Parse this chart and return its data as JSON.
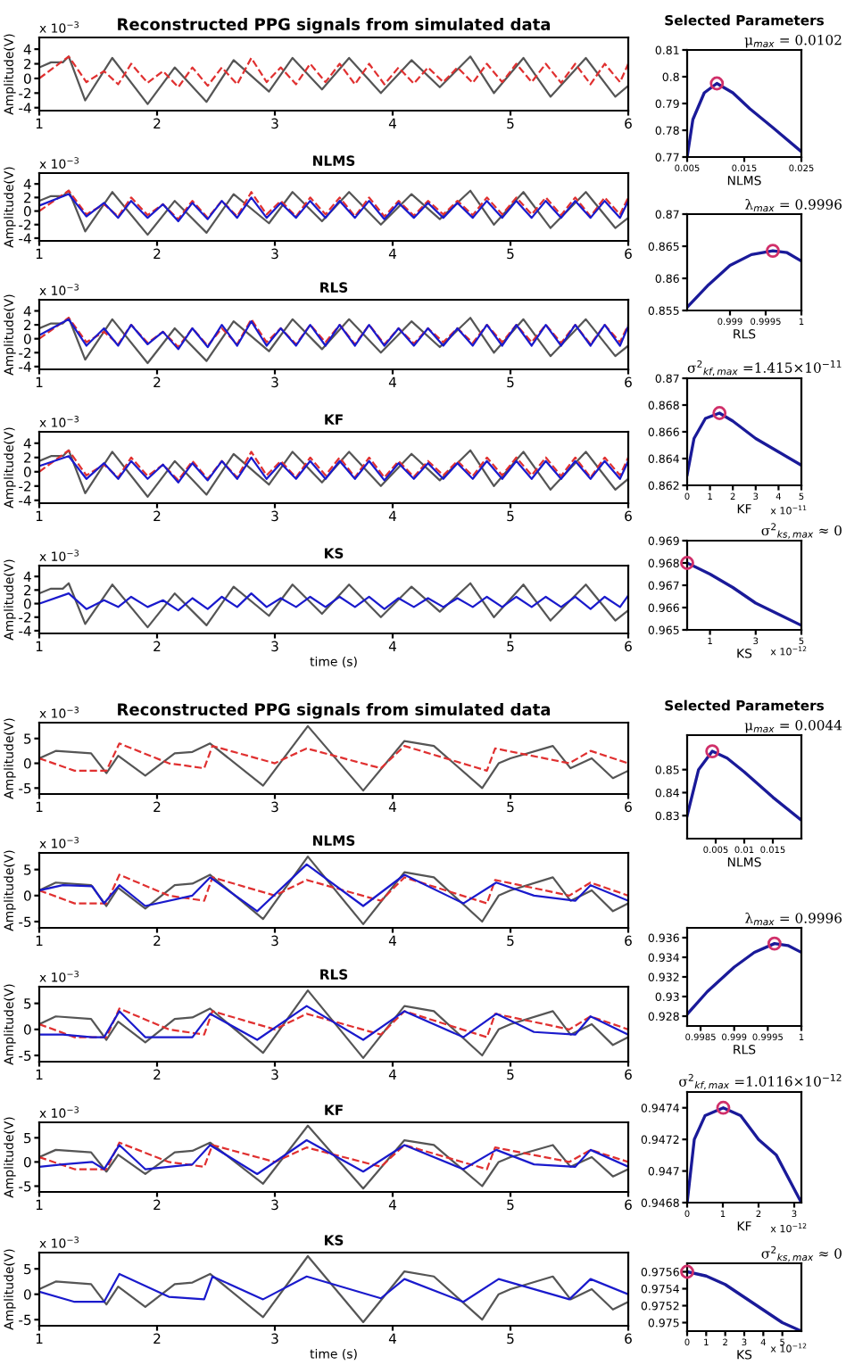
{
  "chart_data": [
    {
      "type": "line",
      "title": "Reconstructed PPG signals from simulated data",
      "ylabel": "Amplitude(V)",
      "xlim": [
        1,
        6
      ],
      "ylim": [
        -4.4,
        5.6
      ],
      "xticks": [
        1,
        2,
        3,
        4,
        5,
        6
      ],
      "yticks": [
        -4,
        -2,
        0,
        2,
        4
      ],
      "annotations": [
        "x 10$^{−3}$"
      ],
      "series": [
        {
          "color": "#555555",
          "x": [
            1.0,
            1.1,
            1.2,
            1.25,
            1.39,
            1.62,
            1.92,
            2.15,
            2.42,
            2.65,
            2.95,
            3.15,
            3.4,
            3.63,
            3.9,
            4.16,
            4.4,
            4.66,
            4.86,
            5.11,
            5.34,
            5.64,
            5.89,
            6.0
          ],
          "values": [
            1.5,
            2.2,
            2.2,
            3,
            -3,
            2.8,
            -3.5,
            1.5,
            -3.2,
            2.5,
            -1.8,
            2.8,
            -1.5,
            2.8,
            -2,
            2.5,
            -1.2,
            3,
            -2,
            2.8,
            -2.5,
            2.8,
            -2.5,
            -1
          ]
        },
        {
          "color": "#e03030",
          "line_style": "dashed",
          "x": [
            1.0,
            1.25,
            1.4,
            1.55,
            1.67,
            1.78,
            1.92,
            2.05,
            2.18,
            2.3,
            2.43,
            2.55,
            2.68,
            2.8,
            2.93,
            3.05,
            3.18,
            3.3,
            3.43,
            3.55,
            3.68,
            3.8,
            3.93,
            4.05,
            4.18,
            4.3,
            4.43,
            4.55,
            4.68,
            4.8,
            4.93,
            5.05,
            5.18,
            5.3,
            5.43,
            5.55,
            5.68,
            5.8,
            5.93,
            6.0
          ],
          "values": [
            0,
            3,
            -0.5,
            1,
            -0.8,
            2,
            -0.6,
            1,
            -1.2,
            1.5,
            -1,
            1.5,
            -0.8,
            2.8,
            -0.5,
            1.5,
            -0.8,
            2,
            -0.5,
            2,
            -0.8,
            2,
            -0.8,
            1.5,
            -0.7,
            1.5,
            -0.5,
            1.5,
            -0.6,
            2,
            -0.5,
            2,
            -0.5,
            2,
            -0.6,
            2,
            -0.8,
            2,
            -0.5,
            2
          ]
        }
      ]
    },
    {
      "type": "line",
      "title": "NLMS",
      "ylabel": "Amplitude(V)",
      "xlim": [
        1,
        6
      ],
      "ylim": [
        -4.4,
        5.6
      ],
      "xticks": [
        1,
        2,
        3,
        4,
        5,
        6
      ],
      "yticks": [
        -4,
        -2,
        0,
        2,
        4
      ],
      "annotations": [
        "x 10$^{−3}$"
      ],
      "series": [
        {
          "color": "#555555",
          "x": [
            1.0,
            1.1,
            1.2,
            1.25,
            1.39,
            1.62,
            1.92,
            2.15,
            2.42,
            2.65,
            2.95,
            3.15,
            3.4,
            3.63,
            3.9,
            4.16,
            4.4,
            4.66,
            4.86,
            5.11,
            5.34,
            5.64,
            5.89,
            6.0
          ],
          "values": [
            1.5,
            2.2,
            2.2,
            3,
            -3,
            2.8,
            -3.5,
            1.5,
            -3.2,
            2.5,
            -1.8,
            2.8,
            -1.5,
            2.8,
            -2,
            2.5,
            -1.2,
            3,
            -2,
            2.8,
            -2.5,
            2.8,
            -2.5,
            -1
          ]
        },
        {
          "color": "#e03030",
          "line_style": "dashed",
          "x": [
            1.0,
            1.25,
            1.4,
            1.55,
            1.67,
            1.78,
            1.92,
            2.05,
            2.18,
            2.3,
            2.43,
            2.55,
            2.68,
            2.8,
            2.93,
            3.05,
            3.18,
            3.3,
            3.43,
            3.55,
            3.68,
            3.8,
            3.93,
            4.05,
            4.18,
            4.3,
            4.43,
            4.55,
            4.68,
            4.8,
            4.93,
            5.05,
            5.18,
            5.3,
            5.43,
            5.55,
            5.68,
            5.8,
            5.93,
            6.0
          ],
          "values": [
            0,
            3,
            -0.5,
            1,
            -0.8,
            2,
            -0.6,
            1,
            -1.2,
            1.5,
            -1,
            1.5,
            -0.8,
            2.8,
            -0.5,
            1.5,
            -0.8,
            2,
            -0.5,
            2,
            -0.8,
            2,
            -0.8,
            1.5,
            -0.7,
            1.5,
            -0.5,
            1.5,
            -0.6,
            2,
            -0.5,
            2,
            -0.5,
            2,
            -0.6,
            2,
            -0.8,
            2,
            -0.5,
            2
          ]
        },
        {
          "color": "#1a1acc",
          "x": [
            1.0,
            1.25,
            1.4,
            1.55,
            1.67,
            1.78,
            1.92,
            2.05,
            2.18,
            2.3,
            2.43,
            2.55,
            2.68,
            2.8,
            2.93,
            3.05,
            3.18,
            3.3,
            3.43,
            3.55,
            3.68,
            3.8,
            3.93,
            4.05,
            4.18,
            4.3,
            4.43,
            4.55,
            4.68,
            4.8,
            4.93,
            5.05,
            5.18,
            5.3,
            5.43,
            5.55,
            5.68,
            5.8,
            5.93,
            6.0
          ],
          "values": [
            0.8,
            2.5,
            -0.8,
            1.2,
            -1,
            1.5,
            -1,
            1,
            -1.5,
            1.2,
            -1.2,
            1.5,
            -1,
            2,
            -1,
            1.2,
            -1,
            1.5,
            -1,
            1.5,
            -1,
            1.5,
            -1.2,
            1.2,
            -1,
            1.2,
            -1,
            1.2,
            -1,
            1.5,
            -1,
            1.5,
            -1,
            1.5,
            -1,
            1.5,
            -1,
            1.5,
            -1,
            1.5
          ]
        }
      ]
    },
    {
      "type": "line",
      "title": "RLS",
      "ylabel": "Amplitude(V)",
      "xlim": [
        1,
        6
      ],
      "ylim": [
        -4.4,
        5.6
      ],
      "xticks": [
        1,
        2,
        3,
        4,
        5,
        6
      ],
      "yticks": [
        -4,
        -2,
        0,
        2,
        4
      ],
      "annotations": [
        "x 10$^{−3}$"
      ],
      "series": [
        {
          "color": "#555555",
          "x": [
            1.0,
            1.1,
            1.2,
            1.25,
            1.39,
            1.62,
            1.92,
            2.15,
            2.42,
            2.65,
            2.95,
            3.15,
            3.4,
            3.63,
            3.9,
            4.16,
            4.4,
            4.66,
            4.86,
            5.11,
            5.34,
            5.64,
            5.89,
            6.0
          ],
          "values": [
            1.5,
            2.2,
            2.2,
            3,
            -3,
            2.8,
            -3.5,
            1.5,
            -3.2,
            2.5,
            -1.8,
            2.8,
            -1.5,
            2.8,
            -2,
            2.5,
            -1.2,
            3,
            -2,
            2.8,
            -2.5,
            2.8,
            -2.5,
            -1
          ]
        },
        {
          "color": "#e03030",
          "line_style": "dashed",
          "x": [
            1.0,
            1.25,
            1.4,
            1.55,
            1.67,
            1.78,
            1.92,
            2.05,
            2.18,
            2.3,
            2.43,
            2.55,
            2.68,
            2.8,
            2.93,
            3.05,
            3.18,
            3.3,
            3.43,
            3.55,
            3.68,
            3.8,
            3.93,
            4.05,
            4.18,
            4.3,
            4.43,
            4.55,
            4.68,
            4.8,
            4.93,
            5.05,
            5.18,
            5.3,
            5.43,
            5.55,
            5.68,
            5.8,
            5.93,
            6.0
          ],
          "values": [
            0,
            3,
            -0.5,
            1,
            -0.8,
            2,
            -0.6,
            1,
            -1.2,
            1.5,
            -1,
            1.5,
            -0.8,
            2.8,
            -0.5,
            1.5,
            -0.8,
            2,
            -0.5,
            2,
            -0.8,
            2,
            -0.8,
            1.5,
            -0.7,
            1.5,
            -0.5,
            1.5,
            -0.6,
            2,
            -0.5,
            2,
            -0.5,
            2,
            -0.6,
            2,
            -0.8,
            2,
            -0.5,
            2
          ]
        },
        {
          "color": "#1a1acc",
          "x": [
            1.0,
            1.25,
            1.4,
            1.55,
            1.67,
            1.78,
            1.92,
            2.05,
            2.18,
            2.3,
            2.43,
            2.55,
            2.68,
            2.8,
            2.93,
            3.05,
            3.18,
            3.3,
            3.43,
            3.55,
            3.68,
            3.8,
            3.93,
            4.05,
            4.18,
            4.3,
            4.43,
            4.55,
            4.68,
            4.8,
            4.93,
            5.05,
            5.18,
            5.3,
            5.43,
            5.55,
            5.68,
            5.8,
            5.93,
            6.0
          ],
          "values": [
            0.5,
            2.8,
            -1,
            1.5,
            -1,
            2,
            -0.8,
            1,
            -1.5,
            1.5,
            -1.2,
            2,
            -1,
            2.5,
            -1,
            1.5,
            -1,
            2,
            -1,
            2,
            -1,
            2,
            -1,
            1.5,
            -1,
            1.5,
            -1,
            1.5,
            -1,
            2,
            -1,
            2,
            -1,
            2,
            -1,
            2,
            -1,
            2,
            -1,
            1.8
          ]
        }
      ]
    },
    {
      "type": "line",
      "title": "KF",
      "ylabel": "Amplitude(V)",
      "xlim": [
        1,
        6
      ],
      "ylim": [
        -4.4,
        5.6
      ],
      "xticks": [
        1,
        2,
        3,
        4,
        5,
        6
      ],
      "yticks": [
        -4,
        -2,
        0,
        2,
        4
      ],
      "annotations": [
        "x 10$^{−3}$"
      ],
      "series": [
        {
          "color": "#555555",
          "x": [
            1.0,
            1.1,
            1.2,
            1.25,
            1.39,
            1.62,
            1.92,
            2.15,
            2.42,
            2.65,
            2.95,
            3.15,
            3.4,
            3.63,
            3.9,
            4.16,
            4.4,
            4.66,
            4.86,
            5.11,
            5.34,
            5.64,
            5.89,
            6.0
          ],
          "values": [
            1.5,
            2.2,
            2.2,
            3,
            -3,
            2.8,
            -3.5,
            1.5,
            -3.2,
            2.5,
            -1.8,
            2.8,
            -1.5,
            2.8,
            -2,
            2.5,
            -1.2,
            3,
            -2,
            2.8,
            -2.5,
            2.8,
            -2.5,
            -1
          ]
        },
        {
          "color": "#e03030",
          "line_style": "dashed",
          "x": [
            1.0,
            1.25,
            1.4,
            1.55,
            1.67,
            1.78,
            1.92,
            2.05,
            2.18,
            2.3,
            2.43,
            2.55,
            2.68,
            2.8,
            2.93,
            3.05,
            3.18,
            3.3,
            3.43,
            3.55,
            3.68,
            3.8,
            3.93,
            4.05,
            4.18,
            4.3,
            4.43,
            4.55,
            4.68,
            4.8,
            4.93,
            5.05,
            5.18,
            5.3,
            5.43,
            5.55,
            5.68,
            5.8,
            5.93,
            6.0
          ],
          "values": [
            0,
            3,
            -0.5,
            1,
            -0.8,
            2,
            -0.6,
            1,
            -1.2,
            1.5,
            -1,
            1.5,
            -0.8,
            2.8,
            -0.5,
            1.5,
            -0.8,
            2,
            -0.5,
            2,
            -0.8,
            2,
            -0.8,
            1.5,
            -0.7,
            1.5,
            -0.5,
            1.5,
            -0.6,
            2,
            -0.5,
            2,
            -0.5,
            2,
            -0.6,
            2,
            -0.8,
            2,
            -0.5,
            2
          ]
        },
        {
          "color": "#1a1acc",
          "x": [
            1.0,
            1.25,
            1.4,
            1.55,
            1.67,
            1.78,
            1.92,
            2.05,
            2.18,
            2.3,
            2.43,
            2.55,
            2.68,
            2.8,
            2.93,
            3.05,
            3.18,
            3.3,
            3.43,
            3.55,
            3.68,
            3.8,
            3.93,
            4.05,
            4.18,
            4.3,
            4.43,
            4.55,
            4.68,
            4.8,
            4.93,
            5.05,
            5.18,
            5.3,
            5.43,
            5.55,
            5.68,
            5.8,
            5.93,
            6.0
          ],
          "values": [
            0.8,
            2.2,
            -1,
            1.2,
            -1,
            1.5,
            -1,
            1,
            -1.5,
            1.2,
            -1.2,
            1.5,
            -1,
            2,
            -1,
            1.2,
            -1,
            1.5,
            -1,
            1.5,
            -1,
            1.5,
            -1.2,
            1.2,
            -1,
            1.2,
            -1,
            1.2,
            -1,
            1.5,
            -1,
            1.5,
            -1,
            1.5,
            -1,
            1.5,
            -1,
            1.5,
            -1,
            1.5
          ]
        }
      ]
    },
    {
      "type": "line",
      "title": "KS",
      "ylabel": "Amplitude(V)",
      "xlabel": "time (s)",
      "xlim": [
        1,
        6
      ],
      "ylim": [
        -4.4,
        5.6
      ],
      "xticks": [
        1,
        2,
        3,
        4,
        5,
        6
      ],
      "yticks": [
        -4,
        -2,
        0,
        2,
        4
      ],
      "annotations": [
        "x 10$^{−3}$"
      ],
      "series": [
        {
          "color": "#555555",
          "x": [
            1.0,
            1.1,
            1.2,
            1.25,
            1.39,
            1.62,
            1.92,
            2.15,
            2.42,
            2.65,
            2.95,
            3.15,
            3.4,
            3.63,
            3.9,
            4.16,
            4.4,
            4.66,
            4.86,
            5.11,
            5.34,
            5.64,
            5.89,
            6.0
          ],
          "values": [
            1.5,
            2.2,
            2.2,
            3,
            -3,
            2.8,
            -3.5,
            1.5,
            -3.2,
            2.5,
            -1.8,
            2.8,
            -1.5,
            2.8,
            -2,
            2.5,
            -1.2,
            3,
            -2,
            2.8,
            -2.5,
            2.8,
            -2.5,
            -1
          ]
        },
        {
          "color": "#1a1acc",
          "x": [
            1.0,
            1.25,
            1.4,
            1.55,
            1.67,
            1.78,
            1.92,
            2.05,
            2.18,
            2.3,
            2.43,
            2.55,
            2.68,
            2.8,
            2.93,
            3.05,
            3.18,
            3.3,
            3.43,
            3.55,
            3.68,
            3.8,
            3.93,
            4.05,
            4.18,
            4.3,
            4.43,
            4.55,
            4.68,
            4.8,
            4.93,
            5.05,
            5.18,
            5.3,
            5.43,
            5.55,
            5.68,
            5.8,
            5.93,
            6.0
          ],
          "values": [
            0,
            1.5,
            -0.8,
            0.5,
            -0.5,
            1,
            -0.5,
            0.5,
            -1,
            0.8,
            -0.8,
            1,
            -0.5,
            1.5,
            -0.5,
            0.8,
            -0.5,
            1,
            -0.5,
            1,
            -0.5,
            1,
            -0.8,
            0.8,
            -0.5,
            0.8,
            -0.5,
            0.8,
            -0.5,
            1,
            -0.5,
            1,
            -0.5,
            1,
            -0.5,
            1,
            -0.8,
            1,
            -0.5,
            1.2
          ]
        }
      ]
    },
    {
      "type": "line",
      "title": "Selected Parameters",
      "xlabel": "NLMS",
      "xlim": [
        0.005,
        0.025
      ],
      "ylim": [
        0.77,
        0.81
      ],
      "xticks": [
        0.005,
        0.015,
        0.025
      ],
      "yticks": [
        0.77,
        0.78,
        0.79,
        0.8,
        0.81
      ],
      "annotations": [
        "μ$_{max}$ = 0.0102"
      ],
      "series": [
        {
          "color": "#1a1a99",
          "x": [
            0.005,
            0.006,
            0.008,
            0.0102,
            0.013,
            0.016,
            0.02,
            0.025
          ],
          "values": [
            0.77,
            0.784,
            0.794,
            0.7975,
            0.794,
            0.788,
            0.781,
            0.772
          ]
        },
        {
          "type": "scatter",
          "marker": "circle",
          "color": "#d0306a",
          "x": [
            0.0102
          ],
          "values": [
            0.7975
          ]
        }
      ]
    },
    {
      "type": "line",
      "xlabel": "RLS",
      "xlim": [
        0.9984,
        1
      ],
      "ylim": [
        0.855,
        0.87
      ],
      "xticks": [
        0.999,
        0.9995,
        1
      ],
      "yticks": [
        0.855,
        0.86,
        0.865,
        0.87
      ],
      "annotations": [
        "λ$_{max}$ = 0.9996"
      ],
      "series": [
        {
          "color": "#1a1a99",
          "x": [
            0.9984,
            0.9987,
            0.999,
            0.9993,
            0.9996,
            0.9998,
            1
          ],
          "values": [
            0.8555,
            0.859,
            0.862,
            0.8637,
            0.8643,
            0.864,
            0.8627
          ]
        },
        {
          "type": "scatter",
          "marker": "circle",
          "color": "#d0306a",
          "x": [
            0.9996
          ],
          "values": [
            0.8643
          ]
        }
      ]
    },
    {
      "type": "line",
      "xlabel": "KF",
      "xlim": [
        0,
        5
      ],
      "ylim": [
        0.862,
        0.87
      ],
      "xticks": [
        0,
        1,
        2,
        3,
        4,
        5
      ],
      "yticks": [
        0.862,
        0.864,
        0.866,
        0.868,
        0.87
      ],
      "annotations": [
        "σ$^{2}$$_{kf,max}$ =1.415×10$^{−11}$",
        "x 10$^{−11}$"
      ],
      "series": [
        {
          "color": "#1a1a99",
          "x": [
            0,
            0.3,
            0.8,
            1.415,
            2,
            3,
            4,
            5
          ],
          "values": [
            0.8628,
            0.8655,
            0.867,
            0.8674,
            0.8668,
            0.8655,
            0.8645,
            0.8635
          ]
        },
        {
          "type": "scatter",
          "marker": "circle",
          "color": "#d0306a",
          "x": [
            1.415
          ],
          "values": [
            0.8674
          ]
        }
      ]
    },
    {
      "type": "line",
      "xlabel": "KS",
      "xlim": [
        0,
        5
      ],
      "ylim": [
        0.965,
        0.969
      ],
      "xticks": [
        1,
        3,
        5
      ],
      "yticks": [
        0.965,
        0.966,
        0.967,
        0.968,
        0.969
      ],
      "annotations": [
        "σ$^{2}$$_{ks,max}$ ≈ 0",
        "x 10$^{−12}$"
      ],
      "series": [
        {
          "color": "#1a1a99",
          "x": [
            0,
            1,
            2,
            3,
            4,
            5
          ],
          "values": [
            0.968,
            0.9675,
            0.9669,
            0.9662,
            0.9657,
            0.9652
          ]
        },
        {
          "type": "scatter",
          "marker": "circle",
          "color": "#d0306a",
          "x": [
            0
          ],
          "values": [
            0.968
          ]
        }
      ]
    },
    {
      "type": "line",
      "title": "Reconstructed PPG signals from simulated data",
      "ylabel": "Amplitude(V)",
      "xlim": [
        1,
        6
      ],
      "ylim": [
        -6.2,
        8.2
      ],
      "xticks": [
        1,
        2,
        3,
        4,
        5,
        6
      ],
      "yticks": [
        -5,
        0,
        5
      ],
      "annotations": [
        "x 10$^{−3}$"
      ],
      "series": [
        {
          "color": "#555555",
          "x": [
            1.0,
            1.14,
            1.44,
            1.57,
            1.67,
            1.9,
            2.15,
            2.3,
            2.45,
            2.9,
            3.28,
            3.75,
            4.1,
            4.35,
            4.76,
            4.9,
            5.0,
            5.36,
            5.51,
            5.69,
            5.87,
            6.0
          ],
          "values": [
            1,
            2.5,
            2,
            -2,
            1.5,
            -2.5,
            2,
            2.3,
            4,
            -4.5,
            7.5,
            -5.5,
            4.5,
            3.5,
            -5,
            0,
            1,
            3.5,
            -1,
            1,
            -3,
            -1.5
          ]
        },
        {
          "color": "#e03030",
          "line_style": "dashed",
          "x": [
            1.0,
            1.3,
            1.57,
            1.68,
            2.1,
            2.4,
            2.47,
            3.0,
            3.27,
            3.9,
            4.1,
            4.8,
            4.87,
            5.5,
            5.68,
            6.0
          ],
          "values": [
            1,
            -1.5,
            -1.5,
            4,
            0,
            -1,
            3.5,
            0,
            3,
            -1,
            3.5,
            -1.5,
            3,
            0,
            2.5,
            0
          ]
        }
      ]
    },
    {
      "type": "line",
      "title": "NLMS",
      "ylabel": "Amplitude(V)",
      "xlim": [
        1,
        6
      ],
      "ylim": [
        -6.2,
        8.2
      ],
      "xticks": [
        1,
        2,
        3,
        4,
        5,
        6
      ],
      "yticks": [
        -5,
        0,
        5
      ],
      "annotations": [
        "x 10$^{−3}$"
      ],
      "series": [
        {
          "color": "#555555",
          "x": [
            1.0,
            1.14,
            1.44,
            1.57,
            1.67,
            1.9,
            2.15,
            2.3,
            2.45,
            2.9,
            3.28,
            3.75,
            4.1,
            4.35,
            4.76,
            4.9,
            5.0,
            5.36,
            5.51,
            5.69,
            5.87,
            6.0
          ],
          "values": [
            1,
            2.5,
            2,
            -2,
            1.5,
            -2.5,
            2,
            2.3,
            4,
            -4.5,
            7.5,
            -5.5,
            4.5,
            3.5,
            -5,
            0,
            1,
            3.5,
            -1,
            1,
            -3,
            -1.5
          ]
        },
        {
          "color": "#e03030",
          "line_style": "dashed",
          "x": [
            1.0,
            1.3,
            1.57,
            1.68,
            2.1,
            2.4,
            2.47,
            3.0,
            3.27,
            3.9,
            4.1,
            4.8,
            4.87,
            5.5,
            5.68,
            6.0
          ],
          "values": [
            1,
            -1.5,
            -1.5,
            4,
            0,
            -1,
            3.5,
            0,
            3,
            -1,
            3.5,
            -1.5,
            3,
            0,
            2.5,
            0
          ]
        },
        {
          "color": "#1a1acc",
          "x": [
            1.0,
            1.2,
            1.45,
            1.55,
            1.68,
            1.9,
            2.3,
            2.45,
            2.85,
            3.27,
            3.75,
            4.1,
            4.6,
            4.88,
            5.2,
            5.55,
            5.68,
            6.0
          ],
          "values": [
            1,
            2,
            1.8,
            -1.5,
            2,
            -2,
            0,
            3.5,
            -3,
            6,
            -2,
            4,
            -1.5,
            2.5,
            0,
            -1,
            2,
            -1
          ]
        }
      ]
    },
    {
      "type": "line",
      "title": "RLS",
      "ylabel": "Amplitude(V)",
      "xlim": [
        1,
        6
      ],
      "ylim": [
        -6.2,
        8.2
      ],
      "xticks": [
        1,
        2,
        3,
        4,
        5,
        6
      ],
      "yticks": [
        -5,
        0,
        5
      ],
      "annotations": [
        "x 10$^{−3}$"
      ],
      "series": [
        {
          "color": "#555555",
          "x": [
            1.0,
            1.14,
            1.44,
            1.57,
            1.67,
            1.9,
            2.15,
            2.3,
            2.45,
            2.9,
            3.28,
            3.75,
            4.1,
            4.35,
            4.76,
            4.9,
            5.0,
            5.36,
            5.51,
            5.69,
            5.87,
            6.0
          ],
          "values": [
            1,
            2.5,
            2,
            -2,
            1.5,
            -2.5,
            2,
            2.3,
            4,
            -4.5,
            7.5,
            -5.5,
            4.5,
            3.5,
            -5,
            0,
            1,
            3.5,
            -1,
            1,
            -3,
            -1.5
          ]
        },
        {
          "color": "#e03030",
          "line_style": "dashed",
          "x": [
            1.0,
            1.3,
            1.57,
            1.68,
            2.1,
            2.4,
            2.47,
            3.0,
            3.27,
            3.9,
            4.1,
            4.8,
            4.87,
            5.5,
            5.68,
            6.0
          ],
          "values": [
            1,
            -1.5,
            -1.5,
            4,
            0,
            -1,
            3.5,
            0,
            3,
            -1,
            3.5,
            -1.5,
            3,
            0,
            2.5,
            0
          ]
        },
        {
          "color": "#1a1acc",
          "x": [
            1.0,
            1.2,
            1.45,
            1.55,
            1.68,
            1.9,
            2.3,
            2.45,
            2.85,
            3.27,
            3.75,
            4.1,
            4.6,
            4.88,
            5.2,
            5.55,
            5.68,
            6.0
          ],
          "values": [
            -1,
            -1,
            -1.5,
            -1.5,
            3.5,
            -1.5,
            -1.5,
            3,
            -2,
            4.5,
            -2,
            3.5,
            -1.5,
            3,
            -0.5,
            -1,
            2.5,
            -1
          ]
        }
      ]
    },
    {
      "type": "line",
      "title": "KF",
      "ylabel": "Amplitude(V)",
      "xlim": [
        1,
        6
      ],
      "ylim": [
        -6.2,
        8.2
      ],
      "xticks": [
        1,
        2,
        3,
        4,
        5,
        6
      ],
      "yticks": [
        -5,
        0,
        5
      ],
      "annotations": [
        "x 10$^{−3}$"
      ],
      "series": [
        {
          "color": "#555555",
          "x": [
            1.0,
            1.14,
            1.44,
            1.57,
            1.67,
            1.9,
            2.15,
            2.3,
            2.45,
            2.9,
            3.28,
            3.75,
            4.1,
            4.35,
            4.76,
            4.9,
            5.0,
            5.36,
            5.51,
            5.69,
            5.87,
            6.0
          ],
          "values": [
            1,
            2.5,
            2,
            -2,
            1.5,
            -2.5,
            2,
            2.3,
            4,
            -4.5,
            7.5,
            -5.5,
            4.5,
            3.5,
            -5,
            0,
            1,
            3.5,
            -1,
            1,
            -3,
            -1.5
          ]
        },
        {
          "color": "#e03030",
          "line_style": "dashed",
          "x": [
            1.0,
            1.3,
            1.57,
            1.68,
            2.1,
            2.4,
            2.47,
            3.0,
            3.27,
            3.9,
            4.1,
            4.8,
            4.87,
            5.5,
            5.68,
            6.0
          ],
          "values": [
            1,
            -1.5,
            -1.5,
            4,
            0,
            -1,
            3.5,
            0,
            3,
            -1,
            3.5,
            -1.5,
            3,
            0,
            2.5,
            0
          ]
        },
        {
          "color": "#1a1acc",
          "x": [
            1.0,
            1.2,
            1.45,
            1.55,
            1.68,
            1.9,
            2.3,
            2.45,
            2.85,
            3.27,
            3.75,
            4.1,
            4.6,
            4.88,
            5.2,
            5.55,
            5.68,
            6.0
          ],
          "values": [
            -1,
            -0.5,
            0,
            -1.5,
            3.5,
            -1.5,
            -0.5,
            3.5,
            -2.5,
            4.5,
            -2,
            3.5,
            -1.5,
            2.5,
            -0.5,
            -1,
            2.5,
            -1
          ]
        }
      ]
    },
    {
      "type": "line",
      "title": "KS",
      "ylabel": "Amplitude(V)",
      "xlabel": "time (s)",
      "xlim": [
        1,
        6
      ],
      "ylim": [
        -6.2,
        8.2
      ],
      "xticks": [
        1,
        2,
        3,
        4,
        5,
        6
      ],
      "yticks": [
        -5,
        0,
        5
      ],
      "annotations": [
        "x 10$^{−3}$"
      ],
      "series": [
        {
          "color": "#555555",
          "x": [
            1.0,
            1.14,
            1.44,
            1.57,
            1.67,
            1.9,
            2.15,
            2.3,
            2.45,
            2.9,
            3.28,
            3.75,
            4.1,
            4.35,
            4.76,
            4.9,
            5.0,
            5.36,
            5.51,
            5.69,
            5.87,
            6.0
          ],
          "values": [
            1,
            2.5,
            2,
            -2,
            1.5,
            -2.5,
            2,
            2.3,
            4,
            -4.5,
            7.5,
            -5.5,
            4.5,
            3.5,
            -5,
            0,
            1,
            3.5,
            -1,
            1,
            -3,
            -1.5
          ]
        },
        {
          "color": "#1a1acc",
          "x": [
            1.0,
            1.3,
            1.55,
            1.68,
            2.1,
            2.4,
            2.47,
            2.9,
            3.27,
            3.9,
            4.1,
            4.6,
            4.9,
            5.5,
            5.68,
            6.0
          ],
          "values": [
            0.5,
            -1.5,
            -1.5,
            4,
            -0.5,
            -1,
            3.5,
            -1,
            3.5,
            -0.8,
            3,
            -1.5,
            3,
            -1,
            3,
            0
          ]
        }
      ]
    },
    {
      "type": "line",
      "title": "Selected Parameters",
      "xlabel": "NLMS",
      "xlim": [
        0,
        0.02
      ],
      "ylim": [
        0.82,
        0.865
      ],
      "xticks": [
        0.005,
        0.01,
        0.015
      ],
      "yticks": [
        0.83,
        0.84,
        0.85
      ],
      "annotations": [
        "μ$_{max}$ = 0.0044"
      ],
      "series": [
        {
          "color": "#1a1a99",
          "x": [
            0,
            0.002,
            0.0044,
            0.007,
            0.01,
            0.015,
            0.02
          ],
          "values": [
            0.83,
            0.85,
            0.858,
            0.855,
            0.849,
            0.838,
            0.828
          ]
        },
        {
          "type": "scatter",
          "marker": "circle",
          "color": "#d0306a",
          "x": [
            0.0044
          ],
          "values": [
            0.858
          ]
        }
      ]
    },
    {
      "type": "line",
      "xlabel": "RLS",
      "xlim": [
        0.9983,
        1
      ],
      "ylim": [
        0.927,
        0.937
      ],
      "xticks": [
        0.9985,
        0.999,
        0.9995,
        1
      ],
      "yticks": [
        0.928,
        0.93,
        0.932,
        0.934,
        0.936
      ],
      "annotations": [
        "λ$_{max}$ = 0.9996"
      ],
      "series": [
        {
          "color": "#1a1a99",
          "x": [
            0.9983,
            0.9986,
            0.999,
            0.9993,
            0.9996,
            0.9998,
            1
          ],
          "values": [
            0.9282,
            0.9305,
            0.933,
            0.9345,
            0.9354,
            0.9352,
            0.9345
          ]
        },
        {
          "type": "scatter",
          "marker": "circle",
          "color": "#d0306a",
          "x": [
            0.9996
          ],
          "values": [
            0.9354
          ]
        }
      ]
    },
    {
      "type": "line",
      "xlabel": "KF",
      "xlim": [
        0,
        3.2
      ],
      "ylim": [
        0.9468,
        0.9475
      ],
      "xticks": [
        0,
        1,
        2,
        3
      ],
      "yticks": [
        0.9468,
        0.947,
        0.9472,
        0.9474
      ],
      "annotations": [
        "σ$^{2}$$_{kf,max}$ =1.0116×10$^{−12}$",
        "x 10$^{−12}$"
      ],
      "series": [
        {
          "color": "#1a1a99",
          "x": [
            0,
            0.2,
            0.5,
            1.0116,
            1.5,
            2,
            2.5,
            3.2
          ],
          "values": [
            0.9468,
            0.9472,
            0.94735,
            0.9474,
            0.94735,
            0.9472,
            0.9471,
            0.9468
          ]
        },
        {
          "type": "scatter",
          "marker": "circle",
          "color": "#d0306a",
          "x": [
            1.0116
          ],
          "values": [
            0.9474
          ]
        }
      ]
    },
    {
      "type": "line",
      "xlabel": "KS",
      "xlim": [
        0,
        6
      ],
      "ylim": [
        0.9749,
        0.9757
      ],
      "xticks": [
        0,
        1,
        2,
        3,
        4,
        5
      ],
      "yticks": [
        0.975,
        0.9752,
        0.9754,
        0.9756
      ],
      "annotations": [
        "σ$^{2}$$_{ks,max}$ ≈ 0",
        "x 10$^{−12}$"
      ],
      "series": [
        {
          "color": "#1a1a99",
          "x": [
            0,
            1,
            2,
            3,
            4,
            5,
            6
          ],
          "values": [
            0.9756,
            0.97555,
            0.97545,
            0.9753,
            0.97515,
            0.975,
            0.9749
          ]
        },
        {
          "type": "scatter",
          "marker": "circle",
          "color": "#d0306a",
          "x": [
            0
          ],
          "values": [
            0.9756
          ]
        }
      ]
    }
  ]
}
